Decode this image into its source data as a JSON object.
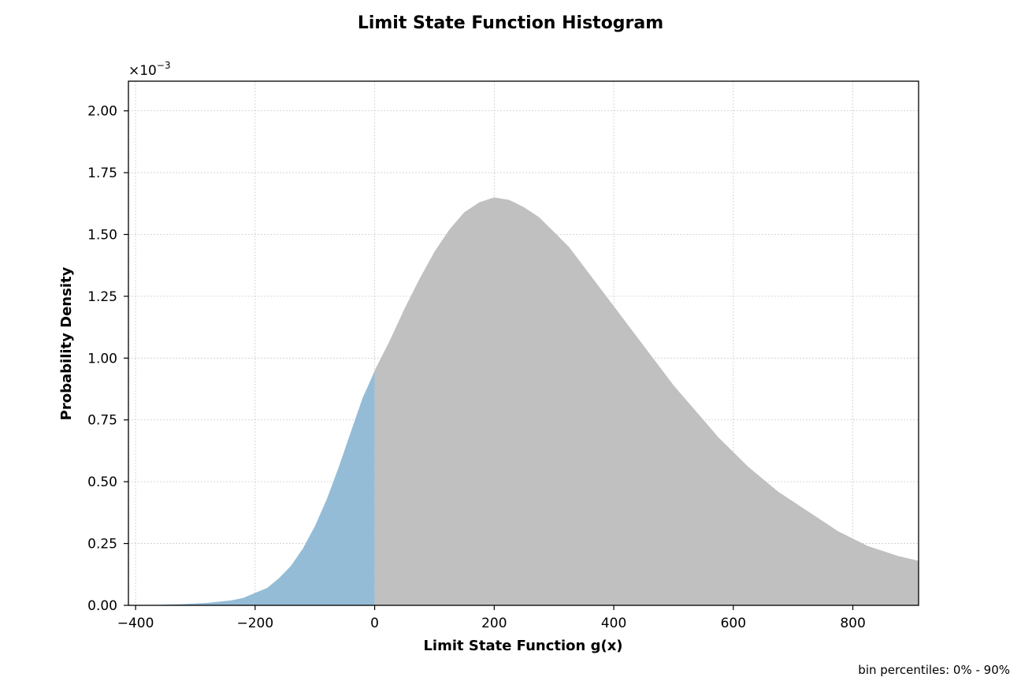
{
  "chart_data": {
    "type": "bar",
    "title": "Limit State Function Histogram",
    "xlabel": "Limit State Function g(x)",
    "ylabel": "Probability Density",
    "y_scale_label": "×10",
    "y_scale_exponent": "−3",
    "footnote": "bin percentiles: 0% - 90%",
    "xlim": [
      -412,
      910
    ],
    "ylim": [
      0,
      0.00212
    ],
    "x_ticks": [
      -400,
      -200,
      0,
      200,
      400,
      600,
      800
    ],
    "x_tick_labels": [
      "−400",
      "−200",
      "0",
      "200",
      "400",
      "600",
      "800"
    ],
    "y_ticks": [
      0,
      0.00025,
      0.0005,
      0.00075,
      0.001,
      0.00125,
      0.0015,
      0.00175,
      0.002
    ],
    "y_tick_labels": [
      "0.00",
      "0.25",
      "0.50",
      "0.75",
      "1.00",
      "1.25",
      "1.50",
      "1.75",
      "2.00"
    ],
    "grid": true,
    "threshold": 0,
    "series": [
      {
        "color": "#94bcd6",
        "x": [
          -360,
          -320,
          -280,
          -240,
          -220,
          -200,
          -180,
          -160,
          -140,
          -120,
          -100,
          -80,
          -60,
          -40,
          -20,
          -5,
          0
        ],
        "density": [
          2e-06,
          5e-06,
          1e-05,
          2e-05,
          3e-05,
          5e-05,
          7e-05,
          0.00011,
          0.00016,
          0.00023,
          0.00032,
          0.00043,
          0.00056,
          0.0007,
          0.00084,
          0.00092,
          0.00095
        ]
      },
      {
        "color": "#c0c0c0",
        "x": [
          0,
          25,
          50,
          75,
          100,
          125,
          150,
          175,
          200,
          225,
          250,
          275,
          300,
          325,
          350,
          375,
          400,
          425,
          450,
          475,
          500,
          525,
          550,
          575,
          600,
          625,
          650,
          675,
          700,
          725,
          750,
          775,
          800,
          825,
          850,
          875,
          910
        ],
        "density": [
          0.00095,
          0.00107,
          0.0012,
          0.00132,
          0.00143,
          0.00152,
          0.00159,
          0.00163,
          0.00165,
          0.00164,
          0.00161,
          0.00157,
          0.00151,
          0.00145,
          0.00137,
          0.00129,
          0.00121,
          0.00113,
          0.00105,
          0.00097,
          0.00089,
          0.00082,
          0.00075,
          0.00068,
          0.00062,
          0.00056,
          0.00051,
          0.00046,
          0.00042,
          0.00038,
          0.00034,
          0.0003,
          0.00027,
          0.00024,
          0.00022,
          0.0002,
          0.00018
        ]
      }
    ]
  }
}
